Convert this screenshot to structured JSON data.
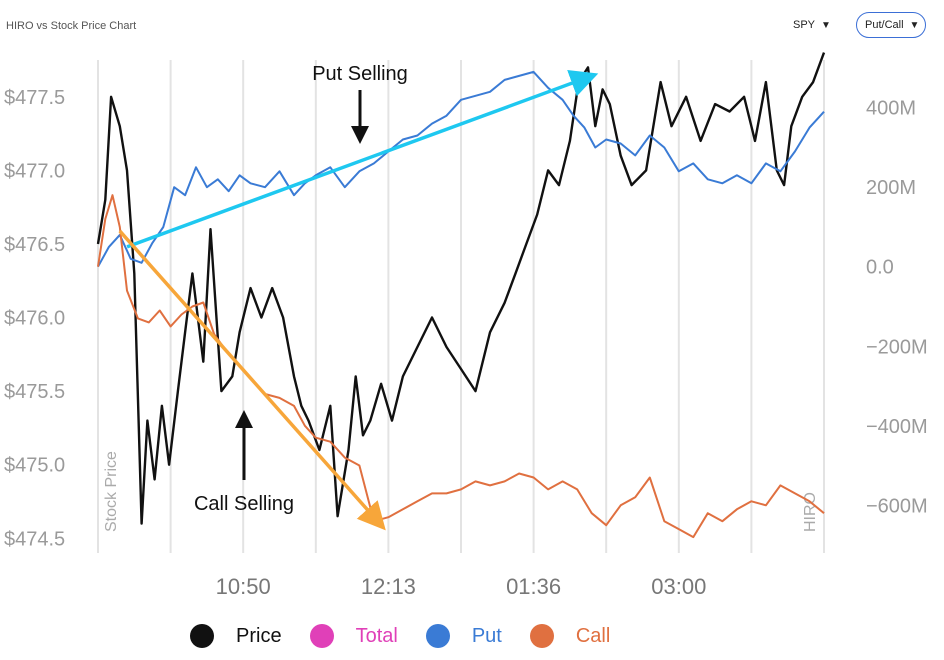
{
  "header": {
    "title": "HIRO vs Stock Price Chart",
    "ticker_select": "SPY",
    "mode_select": "Put/Call"
  },
  "colors": {
    "price": "#111111",
    "total": "#e040b8",
    "put": "#3a7bd5",
    "call": "#e07040",
    "put_arrow": "#1ec8f0",
    "call_arrow": "#f7a63a",
    "axis_text": "#9a9a9a",
    "grid": "#e3e3e3"
  },
  "chart_data": {
    "type": "line",
    "left_axis": {
      "title": "Stock Price",
      "ticks": [
        "$477.5",
        "$477.0",
        "$476.5",
        "$476.0",
        "$475.5",
        "$475.0",
        "$474.5"
      ],
      "tick_values": [
        477.5,
        477.0,
        476.5,
        476.0,
        475.5,
        475.0,
        474.5
      ],
      "range": [
        474.4,
        477.75
      ]
    },
    "right_axis": {
      "title": "HIRO",
      "ticks": [
        "400M",
        "200M",
        "0.0",
        "−200M",
        "−400M",
        "−600M"
      ],
      "tick_values": [
        400,
        200,
        0,
        -200,
        -400,
        -600
      ],
      "unit": "M",
      "range": [
        -720,
        520
      ]
    },
    "x_axis": {
      "ticks": [
        "10:50",
        "12:13",
        "01:36",
        "03:00"
      ],
      "tick_positions": [
        2,
        4,
        6,
        8
      ],
      "range": [
        0,
        10
      ]
    },
    "legend": [
      "Price",
      "Total",
      "Put",
      "Call"
    ],
    "series": [
      {
        "name": "Price",
        "axis": "left",
        "x": [
          0,
          0.1,
          0.18,
          0.3,
          0.4,
          0.5,
          0.6,
          0.68,
          0.78,
          0.88,
          0.98,
          1.1,
          1.2,
          1.3,
          1.45,
          1.55,
          1.7,
          1.85,
          1.95,
          2.1,
          2.25,
          2.4,
          2.55,
          2.7,
          2.8,
          2.9,
          3.05,
          3.2,
          3.3,
          3.45,
          3.55,
          3.65,
          3.75,
          3.9,
          4.05,
          4.2,
          4.4,
          4.6,
          4.8,
          5.0,
          5.2,
          5.4,
          5.6,
          5.75,
          5.9,
          6.05,
          6.2,
          6.35,
          6.5,
          6.62,
          6.75,
          6.85,
          6.95,
          7.05,
          7.2,
          7.35,
          7.55,
          7.75,
          7.9,
          8.1,
          8.3,
          8.5,
          8.7,
          8.9,
          9.05,
          9.2,
          9.35,
          9.45,
          9.55,
          9.7,
          9.85,
          10.0
        ],
        "y": [
          476.5,
          476.8,
          477.5,
          477.3,
          477.0,
          476.3,
          474.6,
          475.3,
          474.9,
          475.4,
          475.0,
          475.5,
          475.9,
          476.3,
          475.7,
          476.6,
          475.5,
          475.6,
          475.9,
          476.2,
          476.0,
          476.2,
          476.0,
          475.6,
          475.4,
          475.3,
          475.1,
          475.4,
          474.65,
          475.1,
          475.6,
          475.2,
          475.3,
          475.55,
          475.3,
          475.6,
          475.8,
          476.0,
          475.8,
          475.65,
          475.5,
          475.9,
          476.1,
          476.3,
          476.5,
          476.7,
          477.0,
          476.9,
          477.2,
          477.6,
          477.7,
          477.3,
          477.55,
          477.45,
          477.1,
          476.9,
          477.0,
          477.6,
          477.3,
          477.5,
          477.2,
          477.45,
          477.4,
          477.5,
          477.2,
          477.6,
          477.0,
          476.9,
          477.3,
          477.5,
          477.6,
          477.8
        ]
      },
      {
        "name": "Put",
        "axis": "right",
        "x": [
          0,
          0.15,
          0.3,
          0.45,
          0.6,
          0.75,
          0.9,
          1.05,
          1.2,
          1.35,
          1.5,
          1.65,
          1.8,
          1.95,
          2.1,
          2.3,
          2.5,
          2.7,
          2.85,
          3.0,
          3.2,
          3.4,
          3.6,
          3.8,
          4.0,
          4.2,
          4.4,
          4.6,
          4.8,
          5.0,
          5.2,
          5.4,
          5.6,
          5.8,
          6.0,
          6.2,
          6.4,
          6.55,
          6.7,
          6.85,
          7.0,
          7.2,
          7.4,
          7.6,
          7.8,
          8.0,
          8.2,
          8.4,
          8.6,
          8.8,
          9.0,
          9.2,
          9.4,
          9.6,
          9.8,
          10.0
        ],
        "y": [
          0,
          50,
          80,
          20,
          10,
          60,
          100,
          200,
          180,
          250,
          200,
          220,
          190,
          230,
          210,
          200,
          240,
          180,
          210,
          230,
          250,
          200,
          240,
          260,
          290,
          320,
          330,
          360,
          380,
          420,
          430,
          440,
          470,
          480,
          490,
          450,
          420,
          380,
          350,
          300,
          320,
          310,
          280,
          330,
          300,
          240,
          260,
          220,
          210,
          230,
          210,
          260,
          240,
          290,
          350,
          390
        ]
      },
      {
        "name": "Call",
        "axis": "right",
        "x": [
          0,
          0.1,
          0.2,
          0.3,
          0.4,
          0.55,
          0.7,
          0.85,
          1.0,
          1.15,
          1.3,
          1.45,
          1.6,
          1.8,
          1.95,
          2.1,
          2.3,
          2.5,
          2.7,
          2.85,
          3.0,
          3.2,
          3.4,
          3.6,
          3.8,
          4.0,
          4.2,
          4.4,
          4.6,
          4.8,
          5.0,
          5.2,
          5.4,
          5.6,
          5.8,
          6.0,
          6.2,
          6.4,
          6.6,
          6.8,
          7.0,
          7.2,
          7.4,
          7.6,
          7.8,
          8.0,
          8.2,
          8.4,
          8.6,
          8.8,
          9.0,
          9.2,
          9.4,
          9.6,
          9.8,
          10.0
        ],
        "y": [
          0,
          120,
          180,
          100,
          -60,
          -130,
          -140,
          -110,
          -150,
          -120,
          -100,
          -90,
          -170,
          -220,
          -250,
          -280,
          -320,
          -330,
          -350,
          -400,
          -430,
          -440,
          -480,
          -500,
          -640,
          -630,
          -610,
          -590,
          -570,
          -570,
          -560,
          -540,
          -550,
          -540,
          -520,
          -530,
          -560,
          -540,
          -560,
          -620,
          -650,
          -600,
          -580,
          -530,
          -640,
          -660,
          -680,
          -620,
          -640,
          -610,
          -590,
          -600,
          -550,
          -570,
          -590,
          -620
        ]
      }
    ],
    "annotations": [
      {
        "text": "Put Selling",
        "kind": "down-arrow"
      },
      {
        "text": "Call Selling",
        "kind": "up-arrow"
      }
    ],
    "trend_arrows": [
      {
        "name": "Put trend",
        "from": [
          0.4,
          50
        ],
        "to": [
          6.8,
          480
        ]
      },
      {
        "name": "Call trend",
        "from": [
          0.3,
          90
        ],
        "to": [
          3.9,
          -650
        ]
      }
    ],
    "grid": "vertical"
  }
}
